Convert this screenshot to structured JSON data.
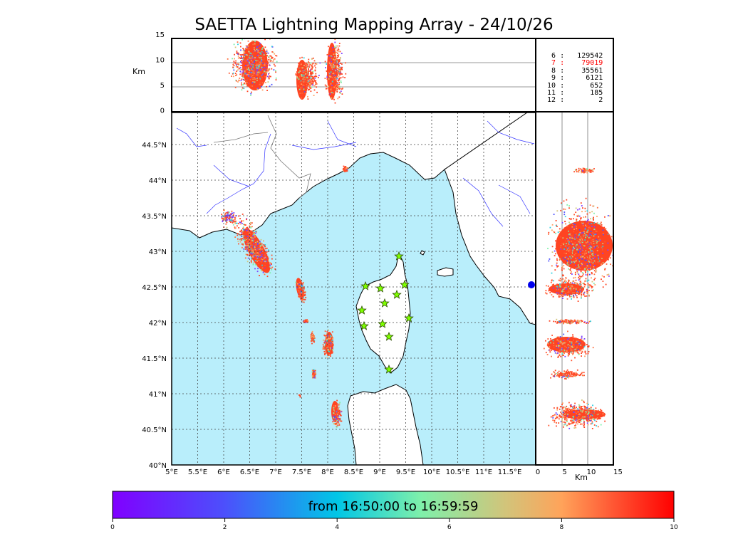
{
  "title": "SAETTA Lightning Mapping Array - 24/10/26",
  "altitude_panel": {
    "ylabel": "Km",
    "yticks": [
      "15",
      "10",
      "5",
      "0"
    ]
  },
  "side_panel": {
    "xlabel": "Km",
    "xticks": [
      "0",
      "5",
      "10",
      "15"
    ]
  },
  "map": {
    "lon_ticks": [
      "5°E",
      "5.5°E",
      "6°E",
      "6.5°E",
      "7°E",
      "7.5°E",
      "8°E",
      "8.5°E",
      "9°E",
      "9.5°E",
      "10°E",
      "10.5°E",
      "11°E",
      "11.5°E"
    ],
    "lat_ticks": [
      "44.5°N",
      "44°N",
      "43.5°N",
      "43°N",
      "42.5°N",
      "42°N",
      "41.5°N",
      "41°N",
      "40.5°N",
      "40°N"
    ],
    "extent": {
      "lon": [
        5,
        12
      ],
      "lat": [
        40,
        44.95
      ]
    },
    "sea_color": "#b9eefb",
    "land_color": "#ffffff",
    "station_icon": "star-icon",
    "station_color": "#7fff00"
  },
  "station_counts": [
    {
      "stations": "6",
      "count": "129542",
      "color": "#000000"
    },
    {
      "stations": "7",
      "count": "79019",
      "color": "#ff0000"
    },
    {
      "stations": "8",
      "count": "35561",
      "color": "#000000"
    },
    {
      "stations": "9",
      "count": "6121",
      "color": "#000000"
    },
    {
      "stations": "10",
      "count": "652",
      "color": "#000000"
    },
    {
      "stations": "11",
      "count": "185",
      "color": "#000000"
    },
    {
      "stations": "12",
      "count": "2",
      "color": "#000000"
    }
  ],
  "colorbar": {
    "label": "from 16:50:00 to 16:59:59",
    "ticks": [
      "0",
      "2",
      "4",
      "6",
      "8",
      "10"
    ],
    "colormap": "rainbow"
  }
}
